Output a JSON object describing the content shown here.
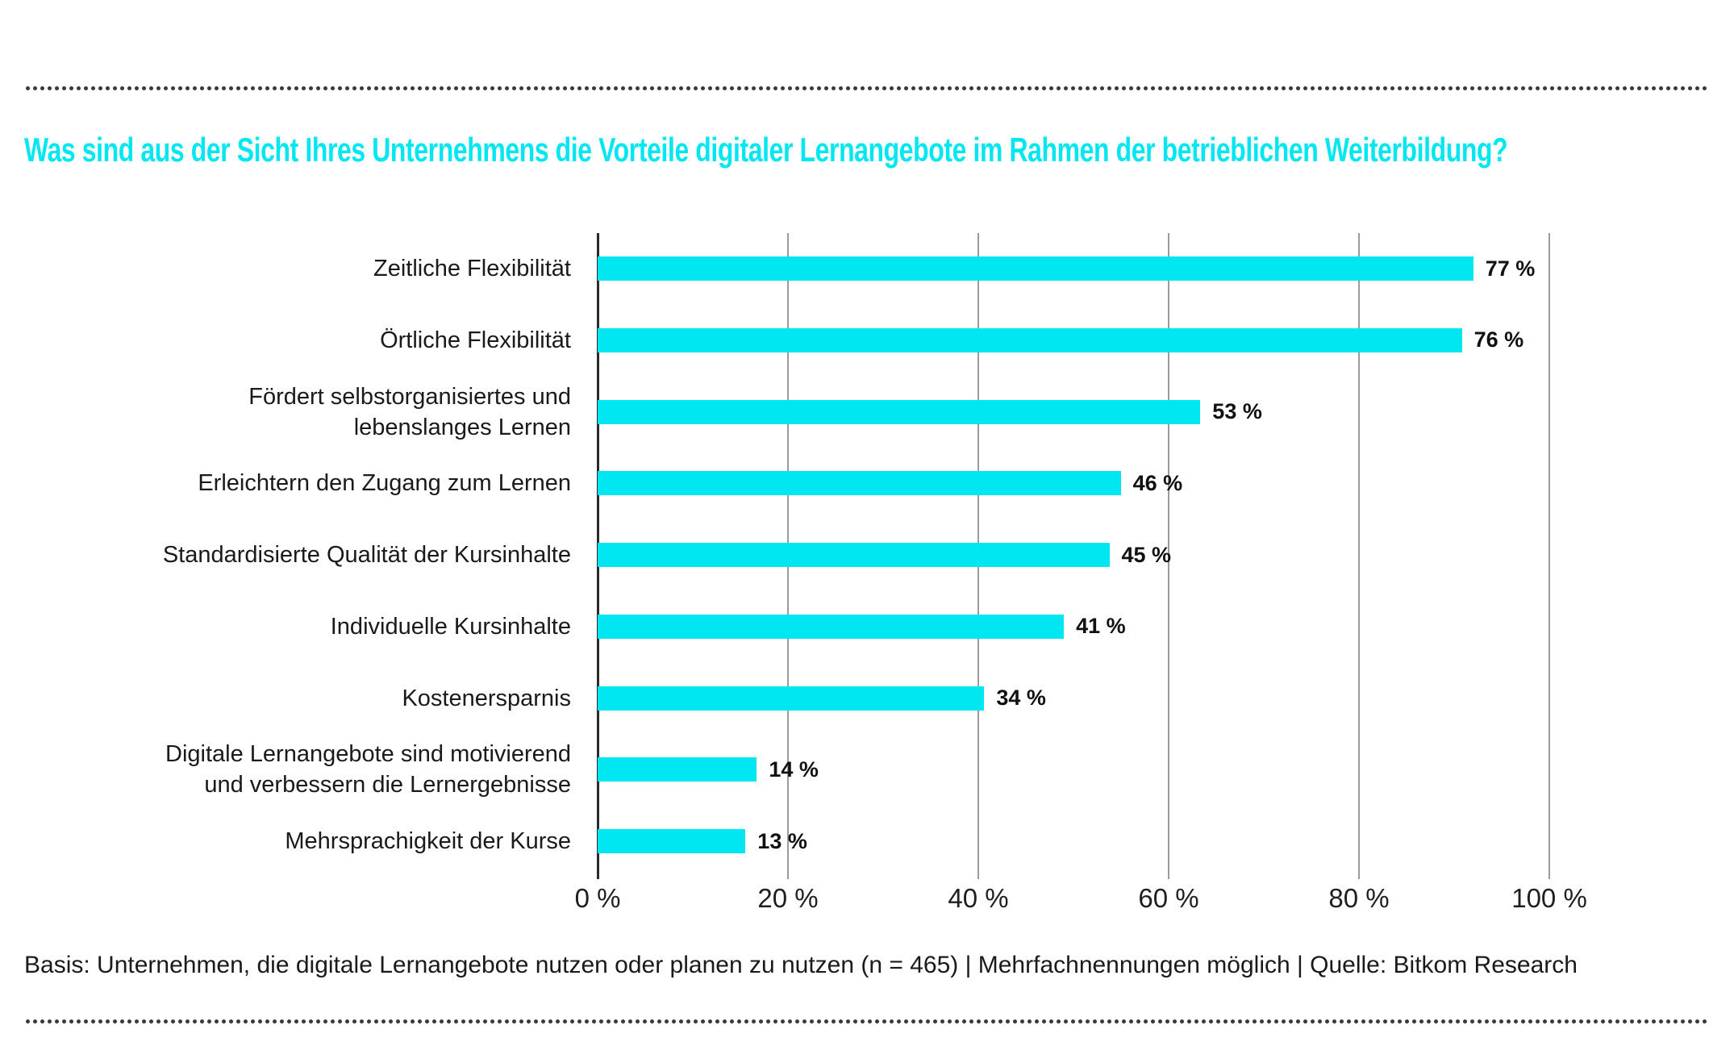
{
  "title": "Was sind aus der Sicht Ihres Unternehmens die Vorteile digitaler Lernangebote im Rahmen der betrieblichen Weiterbildung?",
  "footer": "Basis: Unternehmen, die digitale Lernangebote nutzen oder planen zu nutzen (n = 465) | Mehrfachnennungen möglich | Quelle: Bitkom Research",
  "colors": {
    "accent": "#00e7f2",
    "text": "#1a1a1a",
    "grid": "#9b9b9b",
    "axis": "#2b2b2b",
    "dots": "#3a3a3a"
  },
  "chart_data": {
    "type": "bar",
    "orientation": "horizontal",
    "title": "Was sind aus der Sicht Ihres Unternehmens die Vorteile digitaler Lernangebote im Rahmen der betrieblichen Weiterbildung?",
    "categories": [
      "Zeitliche Flexibilität",
      "Örtliche Flexibilität",
      "Fördert selbstorganisiertes und\nlebenslanges Lernen",
      "Erleichtern den Zugang zum Lernen",
      "Standardisierte Qualität der Kursinhalte",
      "Individuelle Kursinhalte",
      "Kostenersparnis",
      "Digitale Lernangebote sind motivierend\nund verbessern die Lernergebnisse",
      "Mehrsprachigkeit der Kurse"
    ],
    "values": [
      77,
      76,
      53,
      46,
      45,
      41,
      34,
      14,
      13
    ],
    "value_labels": [
      "77 %",
      "76 %",
      "53 %",
      "46 %",
      "45 %",
      "41 %",
      "34 %",
      "14 %",
      "13 %"
    ],
    "x_ticks": [
      "0 %",
      "20 %",
      "40 %",
      "60 %",
      "80 %",
      "100 %"
    ],
    "xlim": [
      0,
      100
    ],
    "grid": "vertical-gridlines-on",
    "legend": "none",
    "bar_color": "#00e7f2",
    "source_note": "Basis: Unternehmen, die digitale Lernangebote nutzen oder planen zu nutzen (n = 465) | Mehrfachnennungen möglich | Quelle: Bitkom Research"
  }
}
